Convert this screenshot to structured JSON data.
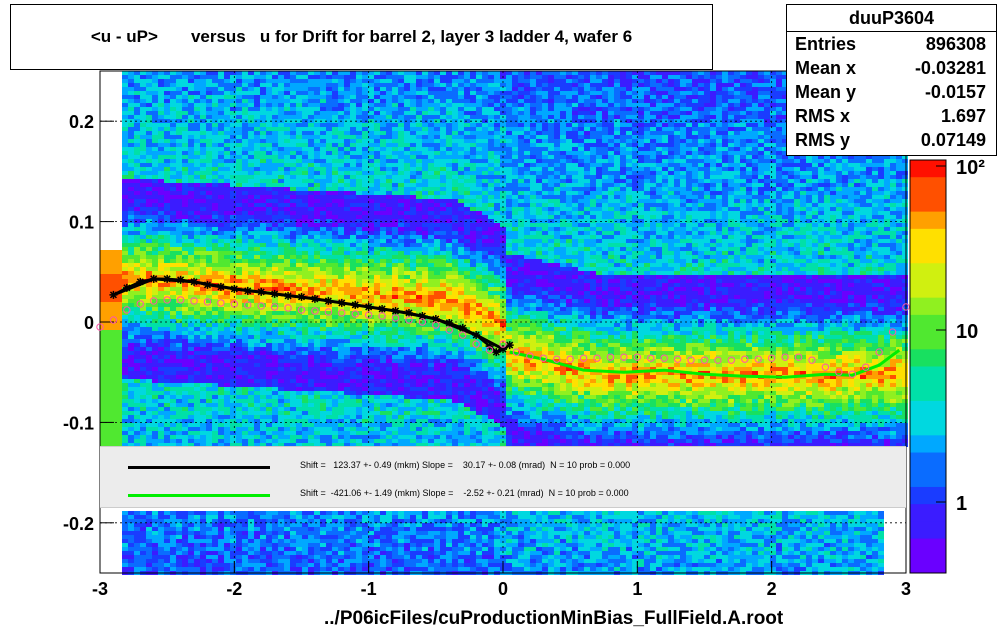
{
  "title": "<u - uP>       versus   u for Drift for barrel 2, layer 3 ladder 4, wafer 6",
  "stats": {
    "name": "duuP3604",
    "rows": [
      {
        "label": "Entries",
        "value": "896308"
      },
      {
        "label": "Mean x",
        "value": "-0.03281"
      },
      {
        "label": "Mean y",
        "value": "-0.0157"
      },
      {
        "label": "RMS x",
        "value": "1.697"
      },
      {
        "label": "RMS y",
        "value": "0.07149"
      }
    ]
  },
  "legend": [
    {
      "color": "#000000",
      "text": "Shift =   123.37 +- 0.49 (mkm) Slope =    30.17 +- 0.08 (mrad)  N = 10 prob = 0.000"
    },
    {
      "color": "#00ee00",
      "text": "Shift =  -421.06 +- 1.49 (mkm) Slope =    -2.52 +- 0.21 (mrad)  N = 10 prob = 0.000"
    }
  ],
  "xlabel": "../P06icFiles/cuProductionMinBias_FullField.A.root",
  "chart_data": {
    "type": "heatmap",
    "xlim": [
      -3,
      3
    ],
    "ylim": [
      -0.25,
      0.25
    ],
    "x_ticks": [
      "-3",
      "-2",
      "-1",
      "0",
      "1",
      "2",
      "3"
    ],
    "y_ticks": [
      "-0.2",
      "-0.1",
      "0",
      "0.1",
      "0.2"
    ],
    "colorbar_ticks": [
      "1",
      "10",
      "10²"
    ],
    "colorbar_scale": "log",
    "grid": true,
    "series": [
      {
        "name": "profile mean",
        "color": "#000000",
        "marker": "star",
        "x": [
          -2.9,
          -2.8,
          -2.7,
          -2.6,
          -2.5,
          -2.4,
          -2.3,
          -2.2,
          -2.1,
          -2.0,
          -1.9,
          -1.8,
          -1.7,
          -1.6,
          -1.5,
          -1.4,
          -1.3,
          -1.2,
          -1.1,
          -1.0,
          -0.9,
          -0.8,
          -0.7,
          -0.6,
          -0.5,
          -0.4,
          -0.3,
          -0.2,
          -0.1,
          -0.05,
          0.0,
          0.05
        ],
        "y": [
          0.027,
          0.034,
          0.04,
          0.043,
          0.043,
          0.042,
          0.04,
          0.037,
          0.035,
          0.033,
          0.031,
          0.03,
          0.028,
          0.026,
          0.025,
          0.023,
          0.021,
          0.019,
          0.017,
          0.015,
          0.013,
          0.011,
          0.009,
          0.006,
          0.003,
          -0.001,
          -0.006,
          -0.013,
          -0.024,
          -0.03,
          -0.027,
          -0.023
        ]
      },
      {
        "name": "fit 1",
        "color": "#000000",
        "marker": "line",
        "x": [
          -2.9,
          -2.6,
          -2.3,
          -2.0,
          -1.7,
          -1.4,
          -1.1,
          -0.8,
          -0.5,
          -0.2,
          0.0
        ],
        "y": [
          0.027,
          0.043,
          0.04,
          0.033,
          0.028,
          0.023,
          0.017,
          0.011,
          0.003,
          -0.013,
          -0.027
        ]
      },
      {
        "name": "fit 2",
        "color": "#00ee00",
        "marker": "line",
        "x": [
          0.05,
          0.3,
          0.6,
          0.9,
          1.2,
          1.5,
          1.8,
          2.1,
          2.4,
          2.6,
          2.8,
          2.95
        ],
        "y": [
          -0.03,
          -0.037,
          -0.048,
          -0.05,
          -0.048,
          -0.052,
          -0.054,
          -0.055,
          -0.052,
          -0.053,
          -0.043,
          -0.028
        ]
      },
      {
        "name": "profile alt",
        "color": "#ff55aa",
        "marker": "open-circle",
        "x": [
          -3.0,
          -2.9,
          -2.8,
          -2.7,
          -2.6,
          -2.5,
          -2.4,
          -2.3,
          -2.2,
          -2.1,
          -2.0,
          -1.9,
          -1.8,
          -1.7,
          -1.6,
          -1.5,
          -1.4,
          -1.3,
          -1.2,
          -1.1,
          -1.0,
          -0.9,
          -0.8,
          -0.7,
          -0.6,
          -0.5,
          -0.4,
          -0.3,
          -0.2,
          -0.1,
          0.0,
          0.1,
          0.2,
          0.3,
          0.4,
          0.5,
          0.6,
          0.7,
          0.8,
          0.9,
          1.0,
          1.1,
          1.2,
          1.3,
          1.4,
          1.5,
          1.6,
          1.7,
          1.8,
          1.9,
          2.0,
          2.1,
          2.2,
          2.3,
          2.4,
          2.5,
          2.6,
          2.7,
          2.8,
          2.9,
          3.0
        ],
        "y": [
          -0.005,
          0.002,
          0.012,
          0.018,
          0.021,
          0.022,
          0.022,
          0.021,
          0.02,
          0.019,
          0.018,
          0.017,
          0.016,
          0.015,
          0.014,
          0.012,
          0.011,
          0.01,
          0.009,
          0.008,
          0.007,
          0.006,
          0.004,
          0.002,
          0.0,
          -0.003,
          -0.008,
          -0.013,
          -0.022,
          -0.028,
          -0.022,
          -0.03,
          -0.034,
          -0.036,
          -0.037,
          -0.037,
          -0.036,
          -0.036,
          -0.035,
          -0.035,
          -0.035,
          -0.036,
          -0.036,
          -0.037,
          -0.038,
          -0.038,
          -0.038,
          -0.038,
          -0.037,
          -0.037,
          -0.036,
          -0.035,
          -0.035,
          -0.038,
          -0.045,
          -0.05,
          -0.052,
          -0.045,
          -0.03,
          -0.01,
          0.015
        ]
      }
    ]
  }
}
